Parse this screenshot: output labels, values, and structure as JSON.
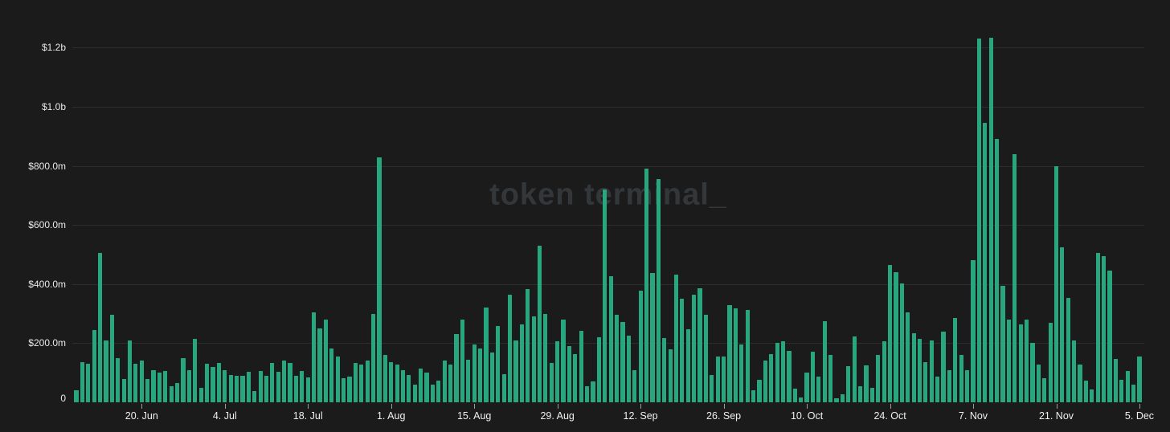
{
  "watermark": "token terminal_",
  "colors": {
    "background": "#1b1b1b",
    "bar": "#28a77e",
    "gridline": "#2c2e2e",
    "y_label": "#e9e9e9",
    "x_label": "#f0f0f0",
    "tick": "#9b9b9b",
    "watermark": "#33373a"
  },
  "chart_data": {
    "type": "bar",
    "title": "",
    "value_unit": "USD",
    "legend": "none",
    "y_axis": {
      "grid": true,
      "tick_labels": [
        "$1.2b",
        "$1.0b",
        "$800.0m",
        "$600.0m",
        "$400.0m",
        "$200.0m",
        "0"
      ],
      "tick_values_usd_m": [
        1200,
        1000,
        800,
        600,
        400,
        200,
        0
      ],
      "range_usd_m": [
        0,
        1240
      ]
    },
    "x_axis": {
      "tick_labels": [
        "20. Jun",
        "4. Jul",
        "18. Jul",
        "1. Aug",
        "15. Aug",
        "29. Aug",
        "12. Sep",
        "26. Sep",
        "10. Oct",
        "24. Oct",
        "7. Nov",
        "21. Nov",
        "5. Dec"
      ],
      "tick_bar_indices": [
        11,
        25,
        39,
        53,
        67,
        81,
        95,
        109,
        123,
        137,
        151,
        165,
        179
      ]
    },
    "values_usd_m": [
      40,
      135,
      130,
      245,
      505,
      210,
      295,
      150,
      80,
      210,
      130,
      140,
      80,
      110,
      100,
      105,
      55,
      65,
      150,
      110,
      215,
      50,
      130,
      120,
      132,
      110,
      93,
      91,
      91,
      102,
      38,
      105,
      91,
      134,
      102,
      141,
      132,
      91,
      105,
      85,
      305,
      250,
      281,
      182,
      155,
      82,
      87,
      132,
      128,
      141,
      300,
      830,
      160,
      136,
      128,
      109,
      93,
      59,
      115,
      100,
      59,
      73,
      141,
      128,
      232,
      281,
      145,
      195,
      182,
      322,
      168,
      259,
      95,
      363,
      209,
      264,
      382,
      291,
      530,
      300,
      134,
      206,
      279,
      191,
      164,
      242,
      55,
      70,
      220,
      720,
      427,
      297,
      272,
      225,
      109,
      377,
      790,
      437,
      755,
      218,
      179,
      433,
      351,
      248,
      363,
      386,
      295,
      93,
      155,
      156,
      329,
      318,
      195,
      313,
      41,
      77,
      142,
      164,
      200,
      206,
      174,
      45,
      15,
      100,
      170,
      87,
      274,
      159,
      14,
      27,
      123,
      223,
      55,
      126,
      50,
      159,
      207,
      465,
      440,
      403,
      304,
      233,
      215,
      136,
      209,
      88,
      240,
      109,
      286,
      159,
      109,
      480,
      1230,
      945,
      1235,
      890,
      395,
      281,
      840,
      263,
      281,
      200,
      127,
      82,
      268,
      800,
      525,
      354,
      209,
      129,
      73,
      43,
      505,
      495,
      445,
      147,
      77,
      106,
      61,
      155
    ]
  }
}
